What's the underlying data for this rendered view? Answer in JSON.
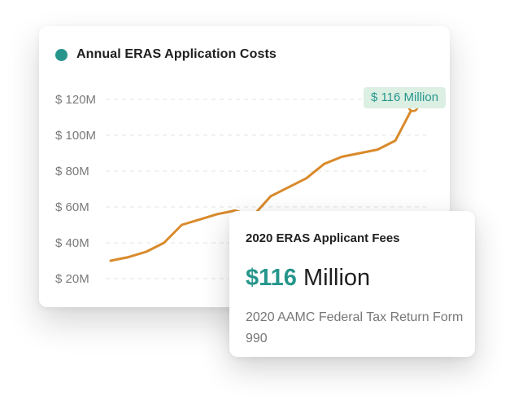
{
  "colors": {
    "accent": "#26968c",
    "line": "#d98a2b",
    "badge_bg": "#dcefe3",
    "grid": "#e3e3e3"
  },
  "chart_data": {
    "type": "line",
    "title": "Annual ERAS Application Costs",
    "y_ticks": [
      "$ 120M",
      "$ 100M",
      "$ 80M",
      "$ 60M",
      "$ 40M",
      "$ 20M"
    ],
    "ylim": [
      20,
      120
    ],
    "y_unit": "M",
    "grid": true,
    "values": [
      30,
      32,
      35,
      40,
      50,
      53,
      56,
      58,
      55,
      66,
      71,
      76,
      84,
      88,
      90,
      92,
      97,
      116
    ],
    "highlight_label": "$ 116 Million"
  },
  "tooltip": {
    "title": "2020 ERAS Applicant Fees",
    "value_number": "$116",
    "value_unit": " Million",
    "source": "2020 AAMC Federal Tax Return Form 990"
  }
}
